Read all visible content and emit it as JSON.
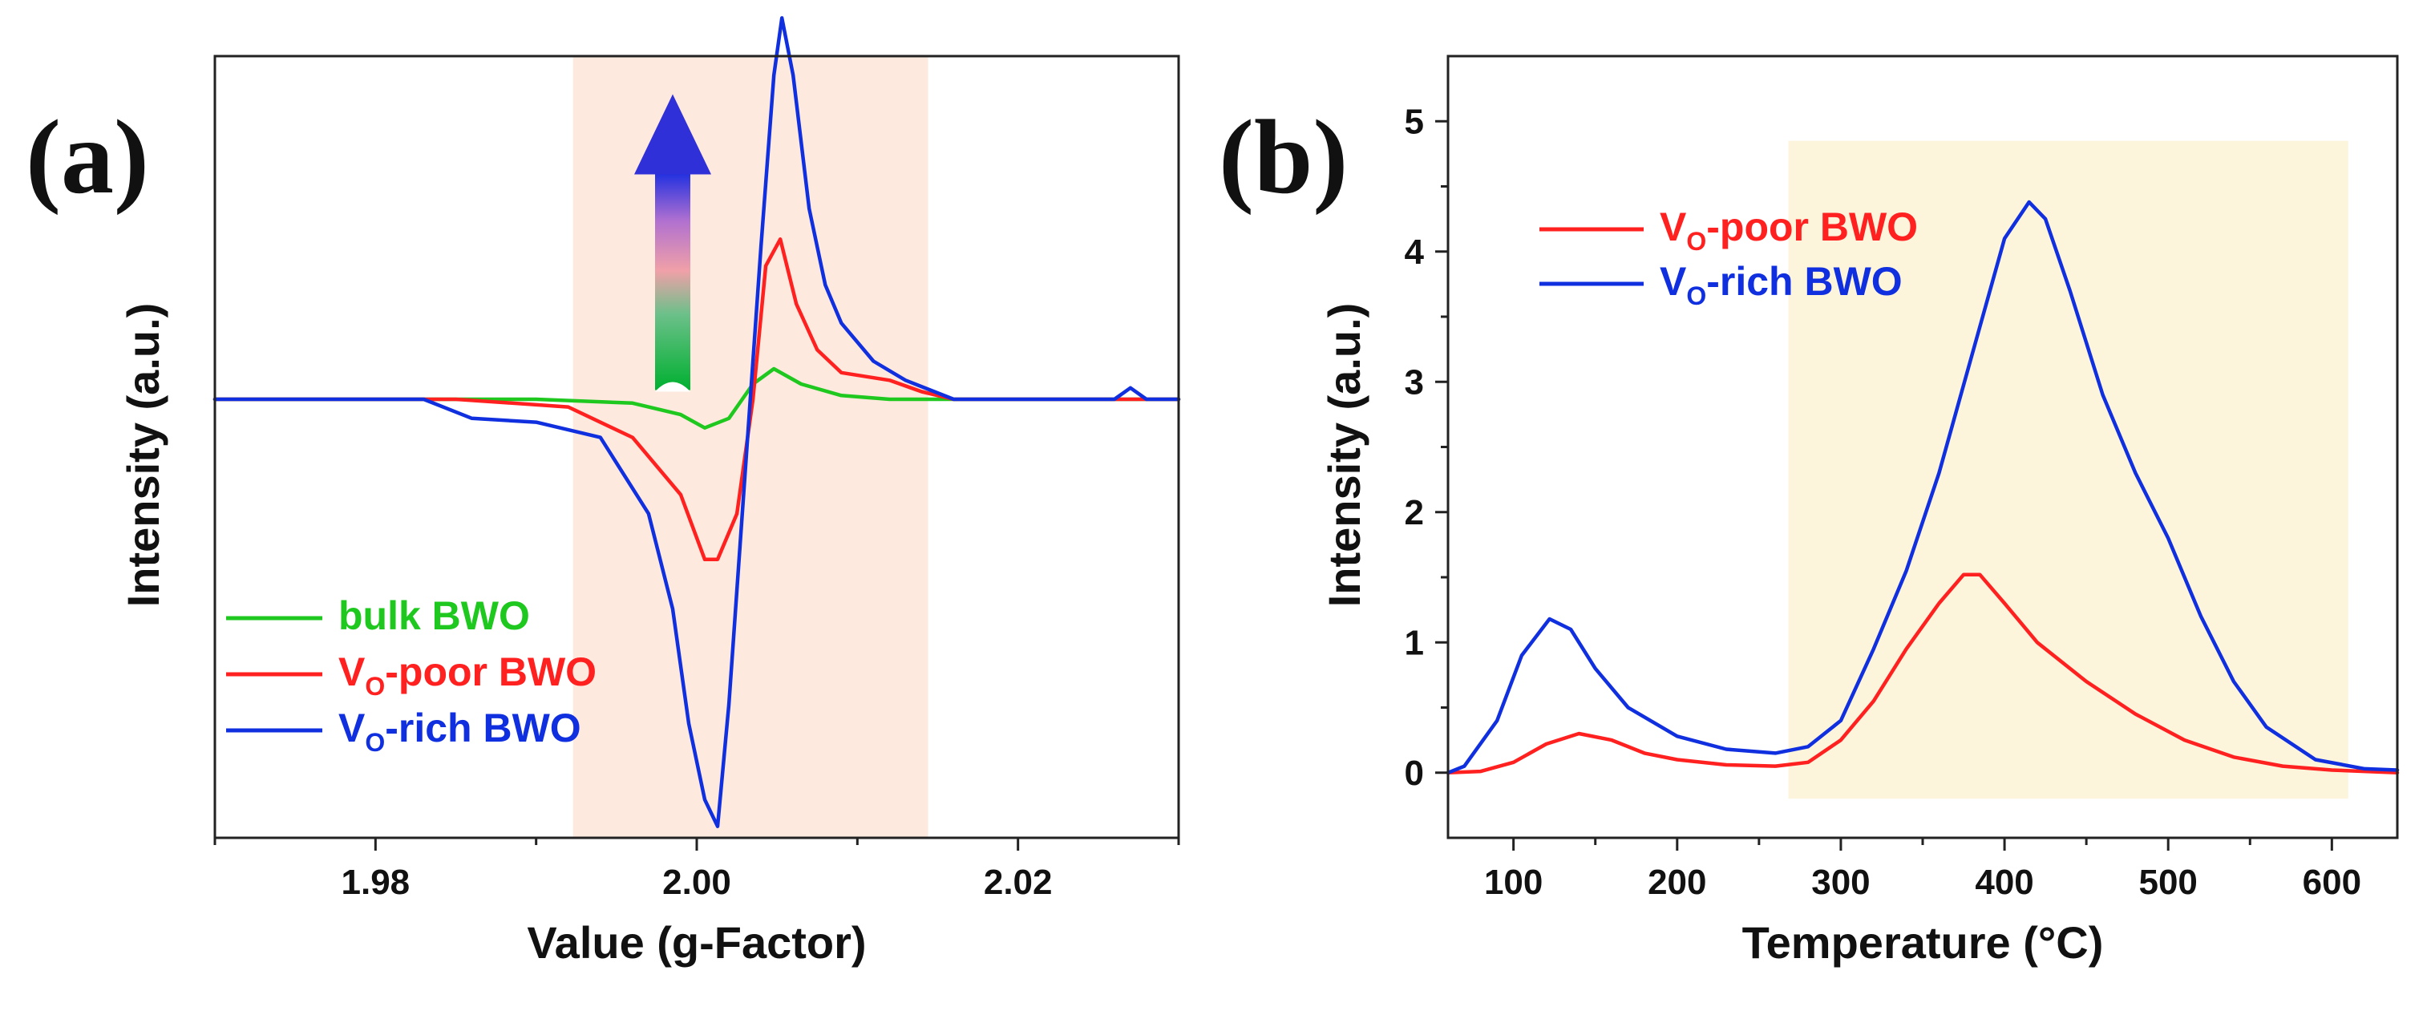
{
  "colors": {
    "bulk": "#1ec81e",
    "poor": "#ff2020",
    "rich": "#1030e0",
    "highlight_a": "#fde9dd",
    "highlight_b": "#fdf4dc"
  },
  "chart_data": [
    {
      "panel": "(a)",
      "type": "line",
      "xlabel": "Value (g-Factor)",
      "ylabel": "Intensity (a.u.)",
      "xlim": [
        1.97,
        2.03
      ],
      "ylim": [
        -1.15,
        0.9
      ],
      "xticks": [
        1.98,
        2.0,
        2.02
      ],
      "xtick_labels": [
        "1.98",
        "2.00",
        "2.02"
      ],
      "yticks_visible": false,
      "shaded_region": [
        1.9923,
        2.0144
      ],
      "arrow": {
        "x": 2.0,
        "y_from": 0.02,
        "y_to": 0.8,
        "gradient": [
          "green",
          "pink",
          "blue"
        ]
      },
      "legend_position": "lower-left",
      "series": [
        {
          "key": "bulk",
          "legend_main": "bulk BWO",
          "legend_sub": "",
          "legend_tail": "",
          "color_key": "bulk",
          "points": [
            [
              1.97,
              0.0
            ],
            [
              1.98,
              0.0
            ],
            [
              1.99,
              0.0
            ],
            [
              1.996,
              -0.01
            ],
            [
              1.999,
              -0.04
            ],
            [
              2.0005,
              -0.075
            ],
            [
              2.002,
              -0.05
            ],
            [
              2.0035,
              0.04
            ],
            [
              2.0048,
              0.08
            ],
            [
              2.0065,
              0.04
            ],
            [
              2.009,
              0.01
            ],
            [
              2.012,
              0.0
            ],
            [
              2.03,
              0.0
            ]
          ]
        },
        {
          "key": "poor",
          "legend_main": "V",
          "legend_sub": "O",
          "legend_tail": "-poor BWO",
          "color_key": "poor",
          "points": [
            [
              1.97,
              0.0
            ],
            [
              1.985,
              0.0
            ],
            [
              1.992,
              -0.02
            ],
            [
              1.996,
              -0.1
            ],
            [
              1.999,
              -0.25
            ],
            [
              2.0005,
              -0.42
            ],
            [
              2.0013,
              -0.42
            ],
            [
              2.0025,
              -0.3
            ],
            [
              2.0035,
              0.0
            ],
            [
              2.0043,
              0.35
            ],
            [
              2.0052,
              0.42
            ],
            [
              2.0062,
              0.25
            ],
            [
              2.0075,
              0.13
            ],
            [
              2.009,
              0.07
            ],
            [
              2.012,
              0.05
            ],
            [
              2.014,
              0.02
            ],
            [
              2.016,
              0.0
            ],
            [
              2.03,
              0.0
            ]
          ]
        },
        {
          "key": "rich",
          "legend_main": "V",
          "legend_sub": "O",
          "legend_tail": "-rich BWO",
          "color_key": "rich",
          "points": [
            [
              1.97,
              0.0
            ],
            [
              1.983,
              0.0
            ],
            [
              1.986,
              -0.05
            ],
            [
              1.99,
              -0.06
            ],
            [
              1.994,
              -0.1
            ],
            [
              1.997,
              -0.3
            ],
            [
              1.9985,
              -0.55
            ],
            [
              1.9995,
              -0.85
            ],
            [
              2.0005,
              -1.05
            ],
            [
              2.0013,
              -1.12
            ],
            [
              2.002,
              -0.8
            ],
            [
              2.003,
              -0.2
            ],
            [
              2.004,
              0.4
            ],
            [
              2.0048,
              0.85
            ],
            [
              2.0053,
              1.0
            ],
            [
              2.006,
              0.85
            ],
            [
              2.007,
              0.5
            ],
            [
              2.008,
              0.3
            ],
            [
              2.009,
              0.2
            ],
            [
              2.011,
              0.1
            ],
            [
              2.013,
              0.05
            ],
            [
              2.016,
              0.0
            ],
            [
              2.026,
              0.0
            ],
            [
              2.027,
              0.03
            ],
            [
              2.028,
              0.0
            ],
            [
              2.03,
              0.0
            ]
          ]
        }
      ]
    },
    {
      "panel": "(b)",
      "type": "line",
      "xlabel": "Temperature (°C)",
      "ylabel": "Intensity (a.u.)",
      "xlim": [
        60,
        640
      ],
      "ylim": [
        -0.5,
        5.5
      ],
      "xticks": [
        100,
        200,
        300,
        400,
        500,
        600
      ],
      "xtick_labels": [
        "100",
        "200",
        "300",
        "400",
        "500",
        "600"
      ],
      "yticks": [
        0,
        1,
        2,
        3,
        4,
        5
      ],
      "ytick_labels": [
        "0",
        "1",
        "2",
        "3",
        "4",
        "5"
      ],
      "shaded_region": [
        268,
        610
      ],
      "shaded_region_y": [
        -0.2,
        4.85
      ],
      "legend_position": "upper-left",
      "series": [
        {
          "key": "poor",
          "legend_main": "V",
          "legend_sub": "O",
          "legend_tail": "-poor BWO",
          "color_key": "poor",
          "points": [
            [
              60,
              0.0
            ],
            [
              80,
              0.01
            ],
            [
              100,
              0.08
            ],
            [
              120,
              0.22
            ],
            [
              140,
              0.3
            ],
            [
              160,
              0.25
            ],
            [
              180,
              0.15
            ],
            [
              200,
              0.1
            ],
            [
              230,
              0.06
            ],
            [
              260,
              0.05
            ],
            [
              280,
              0.08
            ],
            [
              300,
              0.25
            ],
            [
              320,
              0.55
            ],
            [
              340,
              0.95
            ],
            [
              360,
              1.3
            ],
            [
              375,
              1.52
            ],
            [
              385,
              1.52
            ],
            [
              400,
              1.3
            ],
            [
              420,
              1.0
            ],
            [
              450,
              0.7
            ],
            [
              480,
              0.45
            ],
            [
              510,
              0.25
            ],
            [
              540,
              0.12
            ],
            [
              570,
              0.05
            ],
            [
              600,
              0.02
            ],
            [
              640,
              0.0
            ]
          ]
        },
        {
          "key": "rich",
          "legend_main": "V",
          "legend_sub": "O",
          "legend_tail": "-rich BWO",
          "color_key": "rich",
          "points": [
            [
              60,
              0.0
            ],
            [
              70,
              0.05
            ],
            [
              90,
              0.4
            ],
            [
              105,
              0.9
            ],
            [
              122,
              1.18
            ],
            [
              135,
              1.1
            ],
            [
              150,
              0.8
            ],
            [
              170,
              0.5
            ],
            [
              200,
              0.28
            ],
            [
              230,
              0.18
            ],
            [
              260,
              0.15
            ],
            [
              280,
              0.2
            ],
            [
              300,
              0.4
            ],
            [
              320,
              0.95
            ],
            [
              340,
              1.55
            ],
            [
              360,
              2.3
            ],
            [
              380,
              3.2
            ],
            [
              400,
              4.1
            ],
            [
              415,
              4.38
            ],
            [
              425,
              4.25
            ],
            [
              440,
              3.7
            ],
            [
              460,
              2.9
            ],
            [
              480,
              2.3
            ],
            [
              500,
              1.8
            ],
            [
              520,
              1.2
            ],
            [
              540,
              0.7
            ],
            [
              560,
              0.35
            ],
            [
              590,
              0.1
            ],
            [
              620,
              0.03
            ],
            [
              640,
              0.02
            ]
          ]
        }
      ]
    }
  ]
}
